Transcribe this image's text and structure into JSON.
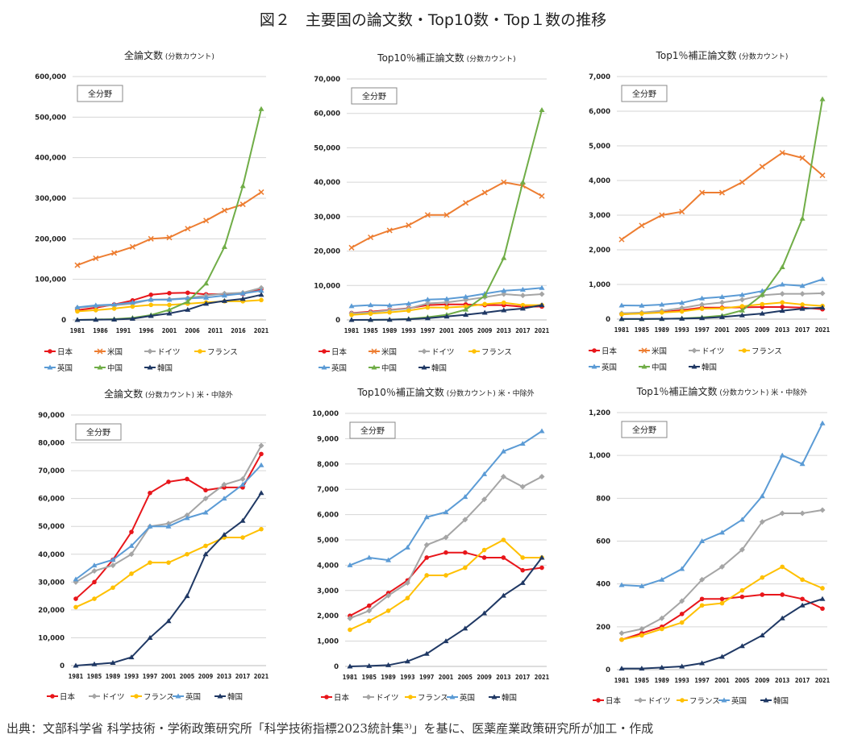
{
  "figure_title": "図２　主要国の論文数・Top10数・Top１数の推移",
  "source": "出典：文部科学省 科学技術・学術政策研究所「科学技術指標2023統計集³⁾」を基に、医薬産業政策研究所が加工・作成",
  "field_label": "全分野",
  "colors": {
    "日本": "#e8161b",
    "米国": "#ed7d31",
    "ドイツ": "#a5a5a5",
    "フランス": "#ffc000",
    "英国": "#5b9bd5",
    "中国": "#70ad47",
    "韓国": "#1f3864"
  },
  "markers": {
    "日本": "circle",
    "米国": "x",
    "ドイツ": "diamond",
    "フランス": "circle",
    "英国": "triangle",
    "中国": "triangle",
    "韓国": "triangle"
  },
  "chart_data": [
    {
      "type": "line",
      "title": "全論文数",
      "subtitle": "(分数カウント)",
      "ylim": [
        0,
        600000
      ],
      "yticks": [
        0,
        100000,
        200000,
        300000,
        400000,
        500000,
        600000
      ],
      "xticks": [
        "1981",
        "1986",
        "1991",
        "1996",
        "2001",
        "2006",
        "2011",
        "2016",
        "2021"
      ],
      "grid": true,
      "legend": "bottom",
      "x": [
        1981,
        1985,
        1989,
        1993,
        1997,
        2001,
        2005,
        2009,
        2013,
        2017,
        2021
      ],
      "series": [
        {
          "name": "日本",
          "values": [
            24000,
            30000,
            38000,
            48000,
            62000,
            66000,
            67000,
            63000,
            64000,
            64000,
            76000
          ]
        },
        {
          "name": "米国",
          "values": [
            135000,
            152000,
            165000,
            180000,
            200000,
            203000,
            225000,
            245000,
            270000,
            285000,
            315000
          ]
        },
        {
          "name": "ドイツ",
          "values": [
            30000,
            34000,
            36000,
            40000,
            50000,
            51000,
            54000,
            60000,
            65000,
            67000,
            79000
          ]
        },
        {
          "name": "フランス",
          "values": [
            21000,
            24000,
            28000,
            33000,
            37000,
            37000,
            40000,
            43000,
            46000,
            46000,
            49000
          ]
        },
        {
          "name": "英国",
          "values": [
            31000,
            36000,
            38000,
            43000,
            50000,
            50000,
            53000,
            55000,
            60000,
            65000,
            72000
          ]
        },
        {
          "name": "中国",
          "values": [
            0,
            1000,
            2000,
            5000,
            12000,
            25000,
            45000,
            90000,
            180000,
            330000,
            520000
          ]
        },
        {
          "name": "韓国",
          "values": [
            0,
            500,
            1000,
            3000,
            10000,
            16000,
            25000,
            40000,
            47000,
            52000,
            62000
          ]
        }
      ]
    },
    {
      "type": "line",
      "title": "Top10％補正論文数",
      "subtitle": "(分数カウント)",
      "ylim": [
        0,
        70000
      ],
      "yticks": [
        0,
        10000,
        20000,
        30000,
        40000,
        50000,
        60000,
        70000
      ],
      "xticks": [
        "1981",
        "1985",
        "1989",
        "1993",
        "1997",
        "2001",
        "2005",
        "2009",
        "2013",
        "2017",
        "2021"
      ],
      "grid": true,
      "legend": "bottom",
      "x": [
        1981,
        1985,
        1989,
        1993,
        1997,
        2001,
        2005,
        2009,
        2013,
        2017,
        2021
      ],
      "series": [
        {
          "name": "日本",
          "values": [
            2000,
            2400,
            2900,
            3400,
            4300,
            4500,
            4500,
            4300,
            4300,
            3800,
            3900
          ]
        },
        {
          "name": "米国",
          "values": [
            21000,
            24000,
            26000,
            27500,
            30500,
            30500,
            34000,
            37000,
            40000,
            39000,
            36000
          ]
        },
        {
          "name": "ドイツ",
          "values": [
            1900,
            2200,
            2800,
            3300,
            4800,
            5100,
            5800,
            6600,
            7500,
            7100,
            7500
          ]
        },
        {
          "name": "フランス",
          "values": [
            1450,
            1800,
            2200,
            2700,
            3600,
            3600,
            3900,
            4600,
            5000,
            4300,
            4300
          ]
        },
        {
          "name": "英国",
          "values": [
            4000,
            4300,
            4200,
            4700,
            5900,
            6100,
            6700,
            7600,
            8500,
            8800,
            9300
          ]
        },
        {
          "name": "中国",
          "values": [
            0,
            0,
            100,
            300,
            800,
            1500,
            3000,
            7000,
            18000,
            40000,
            61000
          ]
        },
        {
          "name": "韓国",
          "values": [
            0,
            20,
            50,
            200,
            500,
            1000,
            1500,
            2100,
            2800,
            3300,
            4300
          ]
        }
      ]
    },
    {
      "type": "line",
      "title": "Top1％補正論文数",
      "subtitle": "(分数カウント)",
      "ylim": [
        0,
        7000
      ],
      "yticks": [
        0,
        1000,
        2000,
        3000,
        4000,
        5000,
        6000,
        7000
      ],
      "xticks": [
        "1981",
        "1985",
        "1989",
        "1993",
        "1997",
        "2001",
        "2005",
        "2009",
        "2013",
        "2017",
        "2021"
      ],
      "grid": true,
      "legend": "bottom",
      "x": [
        1981,
        1985,
        1989,
        1993,
        1997,
        2001,
        2005,
        2009,
        2013,
        2017,
        2021
      ],
      "series": [
        {
          "name": "日本",
          "values": [
            140,
            170,
            200,
            260,
            330,
            330,
            340,
            350,
            350,
            330,
            285
          ]
        },
        {
          "name": "米国",
          "values": [
            2300,
            2700,
            3000,
            3100,
            3650,
            3650,
            3950,
            4400,
            4800,
            4650,
            4150
          ]
        },
        {
          "name": "ドイツ",
          "values": [
            170,
            190,
            240,
            320,
            420,
            480,
            560,
            690,
            730,
            730,
            745
          ]
        },
        {
          "name": "フランス",
          "values": [
            140,
            160,
            190,
            220,
            300,
            310,
            370,
            430,
            480,
            420,
            380
          ]
        },
        {
          "name": "英国",
          "values": [
            395,
            390,
            420,
            470,
            600,
            640,
            700,
            810,
            1000,
            960,
            1150
          ]
        },
        {
          "name": "中国",
          "values": [
            0,
            0,
            5,
            20,
            50,
            100,
            250,
            700,
            1500,
            2900,
            6350
          ]
        },
        {
          "name": "韓国",
          "values": [
            5,
            5,
            10,
            15,
            30,
            60,
            110,
            160,
            240,
            300,
            330
          ]
        }
      ]
    },
    {
      "type": "line",
      "title": "全論文数",
      "subtitle": "(分数カウント)",
      "note": "米・中除外",
      "ylim": [
        0,
        90000
      ],
      "yticks": [
        0,
        10000,
        20000,
        30000,
        40000,
        50000,
        60000,
        70000,
        80000,
        90000
      ],
      "xticks": [
        "1981",
        "1985",
        "1989",
        "1993",
        "1997",
        "2001",
        "2005",
        "2009",
        "2013",
        "2017",
        "2021"
      ],
      "grid": true,
      "legend": "bottom",
      "x": [
        1981,
        1985,
        1989,
        1993,
        1997,
        2001,
        2005,
        2009,
        2013,
        2017,
        2021
      ],
      "series": [
        {
          "name": "日本",
          "values": [
            24000,
            30000,
            38000,
            48000,
            62000,
            66000,
            67000,
            63000,
            64000,
            64000,
            76000
          ]
        },
        {
          "name": "ドイツ",
          "values": [
            30000,
            34000,
            36000,
            40000,
            50000,
            51000,
            54000,
            60000,
            65000,
            67000,
            79000
          ]
        },
        {
          "name": "フランス",
          "values": [
            21000,
            24000,
            28000,
            33000,
            37000,
            37000,
            40000,
            43000,
            46000,
            46000,
            49000
          ]
        },
        {
          "name": "英国",
          "values": [
            31000,
            36000,
            38000,
            43000,
            50000,
            50000,
            53000,
            55000,
            60000,
            65000,
            72000
          ]
        },
        {
          "name": "韓国",
          "values": [
            0,
            500,
            1000,
            3000,
            10000,
            16000,
            25000,
            40000,
            47000,
            52000,
            62000
          ]
        }
      ]
    },
    {
      "type": "line",
      "title": "Top10％補正論文数",
      "subtitle": "(分数カウント)",
      "note": "米・中除外",
      "ylim": [
        0,
        10000
      ],
      "yticks": [
        0,
        1000,
        2000,
        3000,
        4000,
        5000,
        6000,
        7000,
        8000,
        9000,
        10000
      ],
      "xticks": [
        "1981",
        "1985",
        "1989",
        "1993",
        "1997",
        "2001",
        "2005",
        "2009",
        "2013",
        "2017",
        "2021"
      ],
      "grid": true,
      "legend": "bottom",
      "x": [
        1981,
        1985,
        1989,
        1993,
        1997,
        2001,
        2005,
        2009,
        2013,
        2017,
        2021
      ],
      "series": [
        {
          "name": "日本",
          "values": [
            2000,
            2400,
            2900,
            3400,
            4300,
            4500,
            4500,
            4300,
            4300,
            3800,
            3900
          ]
        },
        {
          "name": "ドイツ",
          "values": [
            1900,
            2200,
            2800,
            3300,
            4800,
            5100,
            5800,
            6600,
            7500,
            7100,
            7500
          ]
        },
        {
          "name": "フランス",
          "values": [
            1450,
            1800,
            2200,
            2700,
            3600,
            3600,
            3900,
            4600,
            5000,
            4300,
            4300
          ]
        },
        {
          "name": "英国",
          "values": [
            4000,
            4300,
            4200,
            4700,
            5900,
            6100,
            6700,
            7600,
            8500,
            8800,
            9300
          ]
        },
        {
          "name": "韓国",
          "values": [
            0,
            20,
            50,
            200,
            500,
            1000,
            1500,
            2100,
            2800,
            3300,
            4300
          ]
        }
      ]
    },
    {
      "type": "line",
      "title": "Top1％補正論文数",
      "subtitle": "(分数カウント)",
      "note": "米・中除外",
      "ylim": [
        0,
        1200
      ],
      "yticks": [
        0,
        200,
        400,
        600,
        800,
        1000,
        1200
      ],
      "xticks": [
        "1981",
        "1985",
        "1989",
        "1993",
        "1997",
        "2001",
        "2005",
        "2009",
        "2013",
        "2017",
        "2021"
      ],
      "grid": true,
      "legend": "bottom",
      "x": [
        1981,
        1985,
        1989,
        1993,
        1997,
        2001,
        2005,
        2009,
        2013,
        2017,
        2021
      ],
      "series": [
        {
          "name": "日本",
          "values": [
            140,
            170,
            200,
            260,
            330,
            330,
            340,
            350,
            350,
            330,
            285
          ]
        },
        {
          "name": "ドイツ",
          "values": [
            170,
            190,
            240,
            320,
            420,
            480,
            560,
            690,
            730,
            730,
            745
          ]
        },
        {
          "name": "フランス",
          "values": [
            140,
            160,
            190,
            220,
            300,
            310,
            370,
            430,
            480,
            420,
            380
          ]
        },
        {
          "name": "英国",
          "values": [
            395,
            390,
            420,
            470,
            600,
            640,
            700,
            810,
            1000,
            960,
            1150
          ]
        },
        {
          "name": "韓国",
          "values": [
            5,
            5,
            10,
            15,
            30,
            60,
            110,
            160,
            240,
            300,
            330
          ]
        }
      ]
    }
  ]
}
